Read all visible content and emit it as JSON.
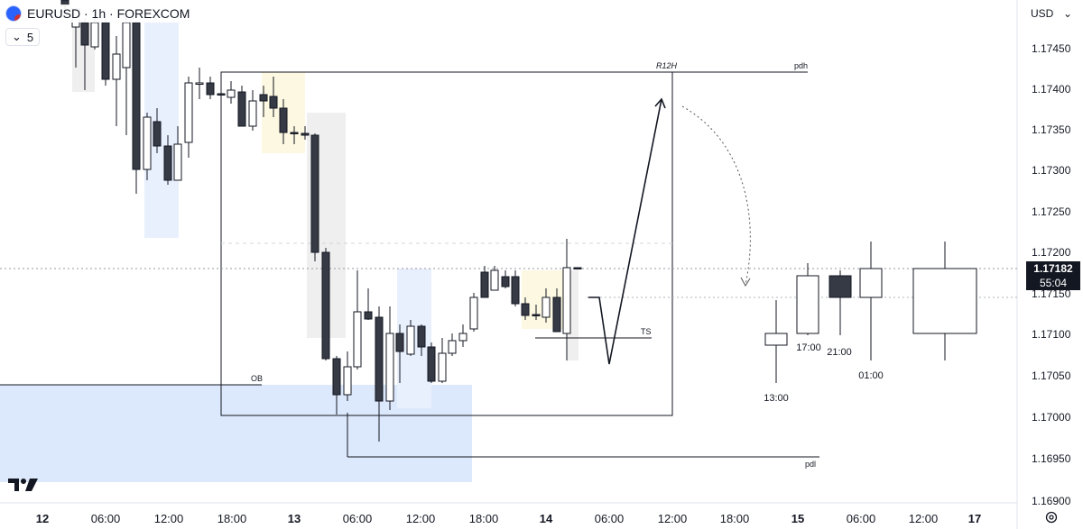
{
  "symbol": {
    "pair": "EURUSD",
    "interval": "1h",
    "exchange": "FOREXCOM",
    "title_line": "EURUSD · 1h · FOREXCOM",
    "flag_icon": "eur-usd-flag-icon"
  },
  "interval_toggle": {
    "icon": "chevron-down-icon",
    "value": "5"
  },
  "currency_button": {
    "label": "USD",
    "icon": "chevron-down-icon"
  },
  "price_axis": {
    "ticks": [
      "1.17450",
      "1.17400",
      "1.17350",
      "1.17300",
      "1.17250",
      "1.17200",
      "1.17150",
      "1.17100",
      "1.17050",
      "1.17000",
      "1.16950",
      "1.16900"
    ],
    "current_price": "1.17182",
    "countdown": "55:04"
  },
  "time_axis": {
    "ticks": [
      "12",
      "06:00",
      "12:00",
      "18:00",
      "13",
      "06:00",
      "12:00",
      "18:00",
      "14",
      "06:00",
      "12:00",
      "18:00",
      "15",
      "06:00",
      "12:00",
      "17"
    ],
    "day_ticks": [
      "12",
      "13",
      "14",
      "15",
      "17"
    ]
  },
  "annotations": {
    "box_label": "R12H",
    "pdh": "pdh",
    "pdl": "pdl",
    "ob": "OB",
    "ts": "TS",
    "projected_times": [
      "13:00",
      "17:00",
      "21:00",
      "01:00"
    ]
  },
  "colors": {
    "bull_body": "#ffffff",
    "bear_body": "#363a45",
    "candle_outline": "#131722",
    "ob_zone": "#dce8fb",
    "highlight_yellow": "#fdf8e1",
    "highlight_gray": "#efefef",
    "highlight_blue": "#e8f0fd",
    "label_bg": "#131722"
  },
  "icons": {
    "logo": "tradingview-logo-icon",
    "settings": "gear-icon"
  }
}
